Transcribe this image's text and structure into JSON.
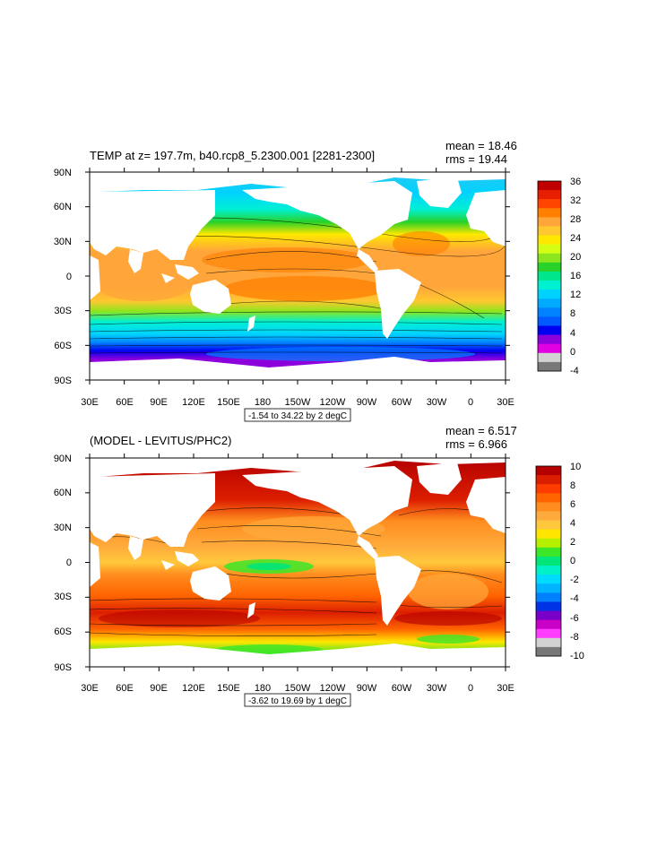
{
  "panels": [
    {
      "title": "TEMP at z= 197.7m, b40.rcp8_5.2300.001 [2281-2300]",
      "stat_mean": "mean = 18.46",
      "stat_rms": "rms = 19.44",
      "range_label": "-1.54 to 34.22 by 2 degC",
      "lat_labels": [
        "90N",
        "60N",
        "30N",
        "0",
        "30S",
        "60S",
        "90S"
      ],
      "lon_labels": [
        "30E",
        "60E",
        "90E",
        "120E",
        "150E",
        "180",
        "150W",
        "120W",
        "90W",
        "60W",
        "30W",
        "0",
        "30E"
      ],
      "colorbar_labels": [
        "36",
        "32",
        "28",
        "24",
        "20",
        "16",
        "12",
        "8",
        "4",
        "0",
        "-4"
      ],
      "colorbar_colors": [
        "#c00000",
        "#e81e00",
        "#ff4500",
        "#ff7f00",
        "#ffa53a",
        "#ffc830",
        "#ffe800",
        "#d4ff14",
        "#8ce61e",
        "#28d228",
        "#00e68c",
        "#00f0d2",
        "#00d2ff",
        "#00aaff",
        "#0082ff",
        "#005aff",
        "#0000f0",
        "#8c00dc",
        "#e100e1",
        "#d2d2d2",
        "#787878"
      ]
    },
    {
      "title": "(MODEL - LEVITUS/PHC2)",
      "stat_mean": "mean = 6.517",
      "stat_rms": "rms = 6.966",
      "range_label": "-3.62 to 19.69 by 1 degC",
      "lat_labels": [
        "90N",
        "60N",
        "30N",
        "0",
        "30S",
        "60S",
        "90S"
      ],
      "lon_labels": [
        "30E",
        "60E",
        "90E",
        "120E",
        "150E",
        "180",
        "150W",
        "120W",
        "90W",
        "60W",
        "30W",
        "0",
        "30E"
      ],
      "colorbar_labels": [
        "10",
        "8",
        "6",
        "4",
        "2",
        "0",
        "-2",
        "-4",
        "-6",
        "-8",
        "-10"
      ],
      "colorbar_colors": [
        "#b40000",
        "#dc1e00",
        "#ff3c00",
        "#ff6400",
        "#ff8c1e",
        "#ffaa3c",
        "#ffc83c",
        "#ffe600",
        "#b4f000",
        "#3ce628",
        "#00e678",
        "#00f0c8",
        "#00dcff",
        "#00b4ff",
        "#0082ff",
        "#0032e6",
        "#7800c8",
        "#c800c8",
        "#ff3cff",
        "#d2d2d2",
        "#787878"
      ]
    }
  ]
}
